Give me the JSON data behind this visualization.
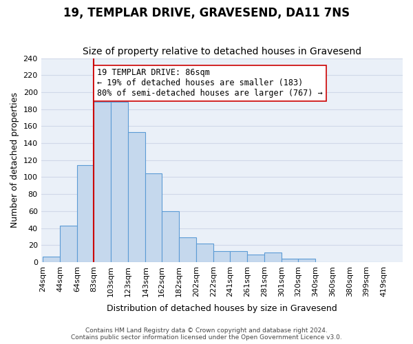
{
  "title": "19, TEMPLAR DRIVE, GRAVESEND, DA11 7NS",
  "subtitle": "Size of property relative to detached houses in Gravesend",
  "xlabel": "Distribution of detached houses by size in Gravesend",
  "ylabel": "Number of detached properties",
  "footnote1": "Contains HM Land Registry data © Crown copyright and database right 2024.",
  "footnote2": "Contains public sector information licensed under the Open Government Licence v3.0.",
  "bin_labels": [
    "24sqm",
    "44sqm",
    "64sqm",
    "83sqm",
    "103sqm",
    "123sqm",
    "143sqm",
    "162sqm",
    "182sqm",
    "202sqm",
    "222sqm",
    "241sqm",
    "261sqm",
    "281sqm",
    "301sqm",
    "320sqm",
    "340sqm",
    "360sqm",
    "380sqm",
    "399sqm",
    "419sqm"
  ],
  "bin_edges": [
    24,
    44,
    64,
    83,
    103,
    123,
    143,
    162,
    182,
    202,
    222,
    241,
    261,
    281,
    301,
    320,
    340,
    360,
    380,
    399,
    419
  ],
  "bar_heights": [
    6,
    43,
    114,
    189,
    189,
    153,
    104,
    60,
    29,
    22,
    13,
    13,
    9,
    11,
    4,
    4,
    0,
    0,
    0,
    0
  ],
  "bar_color": "#c5d8ed",
  "bar_edge_color": "#5b9bd5",
  "property_size": 86,
  "vline_x": 83,
  "vline_color": "#cc0000",
  "annotation_title": "19 TEMPLAR DRIVE: 86sqm",
  "annotation_line1": "← 19% of detached houses are smaller (183)",
  "annotation_line2": "80% of semi-detached houses are larger (767) →",
  "annotation_box_color": "#ffffff",
  "annotation_box_edge": "#cc0000",
  "ylim": [
    0,
    240
  ],
  "yticks": [
    0,
    20,
    40,
    60,
    80,
    100,
    120,
    140,
    160,
    180,
    200,
    220,
    240
  ],
  "grid_color": "#d0d8e8",
  "bg_color": "#eaf0f8",
  "title_fontsize": 12,
  "subtitle_fontsize": 10,
  "axis_label_fontsize": 9,
  "tick_fontsize": 8,
  "annotation_fontsize": 8.5,
  "footnote_fontsize": 6.5
}
